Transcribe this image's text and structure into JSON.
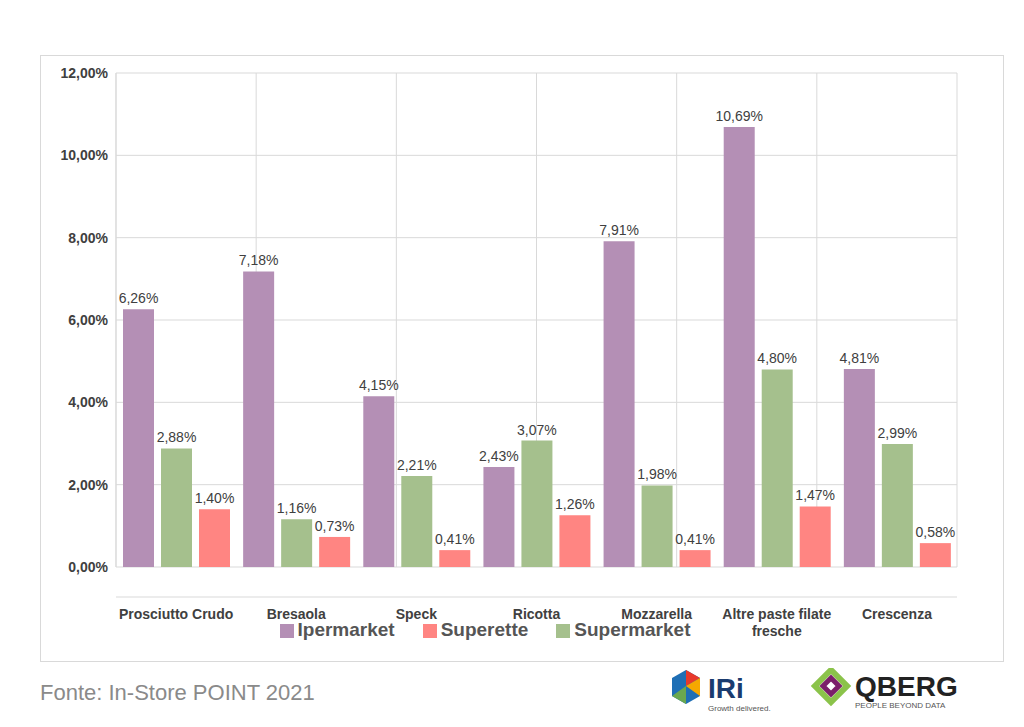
{
  "chart_data": {
    "type": "bar",
    "categories": [
      "Prosciutto Crudo",
      "Bresaola",
      "Speck",
      "Ricotta",
      "Mozzarella",
      "Altre paste filate fresche",
      "Crescenza"
    ],
    "series": [
      {
        "name": "Ipermarket",
        "color": "#b48fb5",
        "values": [
          6.26,
          7.18,
          4.15,
          2.43,
          7.91,
          10.69,
          4.81
        ],
        "value_labels": [
          "6,26%",
          "7,18%",
          "4,15%",
          "2,43%",
          "7,91%",
          "10,69%",
          "4,81%"
        ]
      },
      {
        "name": "Supermarket",
        "color": "#a5c08d",
        "values": [
          2.88,
          1.16,
          2.21,
          3.07,
          1.98,
          4.8,
          2.99
        ],
        "value_labels": [
          "2,88%",
          "1,16%",
          "2,21%",
          "3,07%",
          "1,98%",
          "4,80%",
          "2,99%"
        ]
      },
      {
        "name": "Superette",
        "color": "#ff8582",
        "values": [
          1.4,
          0.73,
          0.41,
          1.26,
          0.41,
          1.47,
          0.58
        ],
        "value_labels": [
          "1,40%",
          "0,73%",
          "0,41%",
          "1,26%",
          "0,41%",
          "1,47%",
          "0,58%"
        ]
      }
    ],
    "ylim": [
      0,
      12
    ],
    "yticks": [
      {
        "value": 0,
        "label": "0,00%"
      },
      {
        "value": 2,
        "label": "2,00%"
      },
      {
        "value": 4,
        "label": "4,00%"
      },
      {
        "value": 6,
        "label": "6,00%"
      },
      {
        "value": 8,
        "label": "8,00%"
      },
      {
        "value": 10,
        "label": "10,00%"
      },
      {
        "value": 12,
        "label": "12,00%"
      }
    ],
    "grid": true,
    "data_labels": true,
    "legend": "bottom",
    "source": "Fonte: In-Store POINT 2021",
    "logos": [
      {
        "name": "IRi",
        "tagline": "Growth delivered."
      },
      {
        "name": "QBERG",
        "tagline": "PEOPLE BEYOND DATA"
      }
    ]
  }
}
